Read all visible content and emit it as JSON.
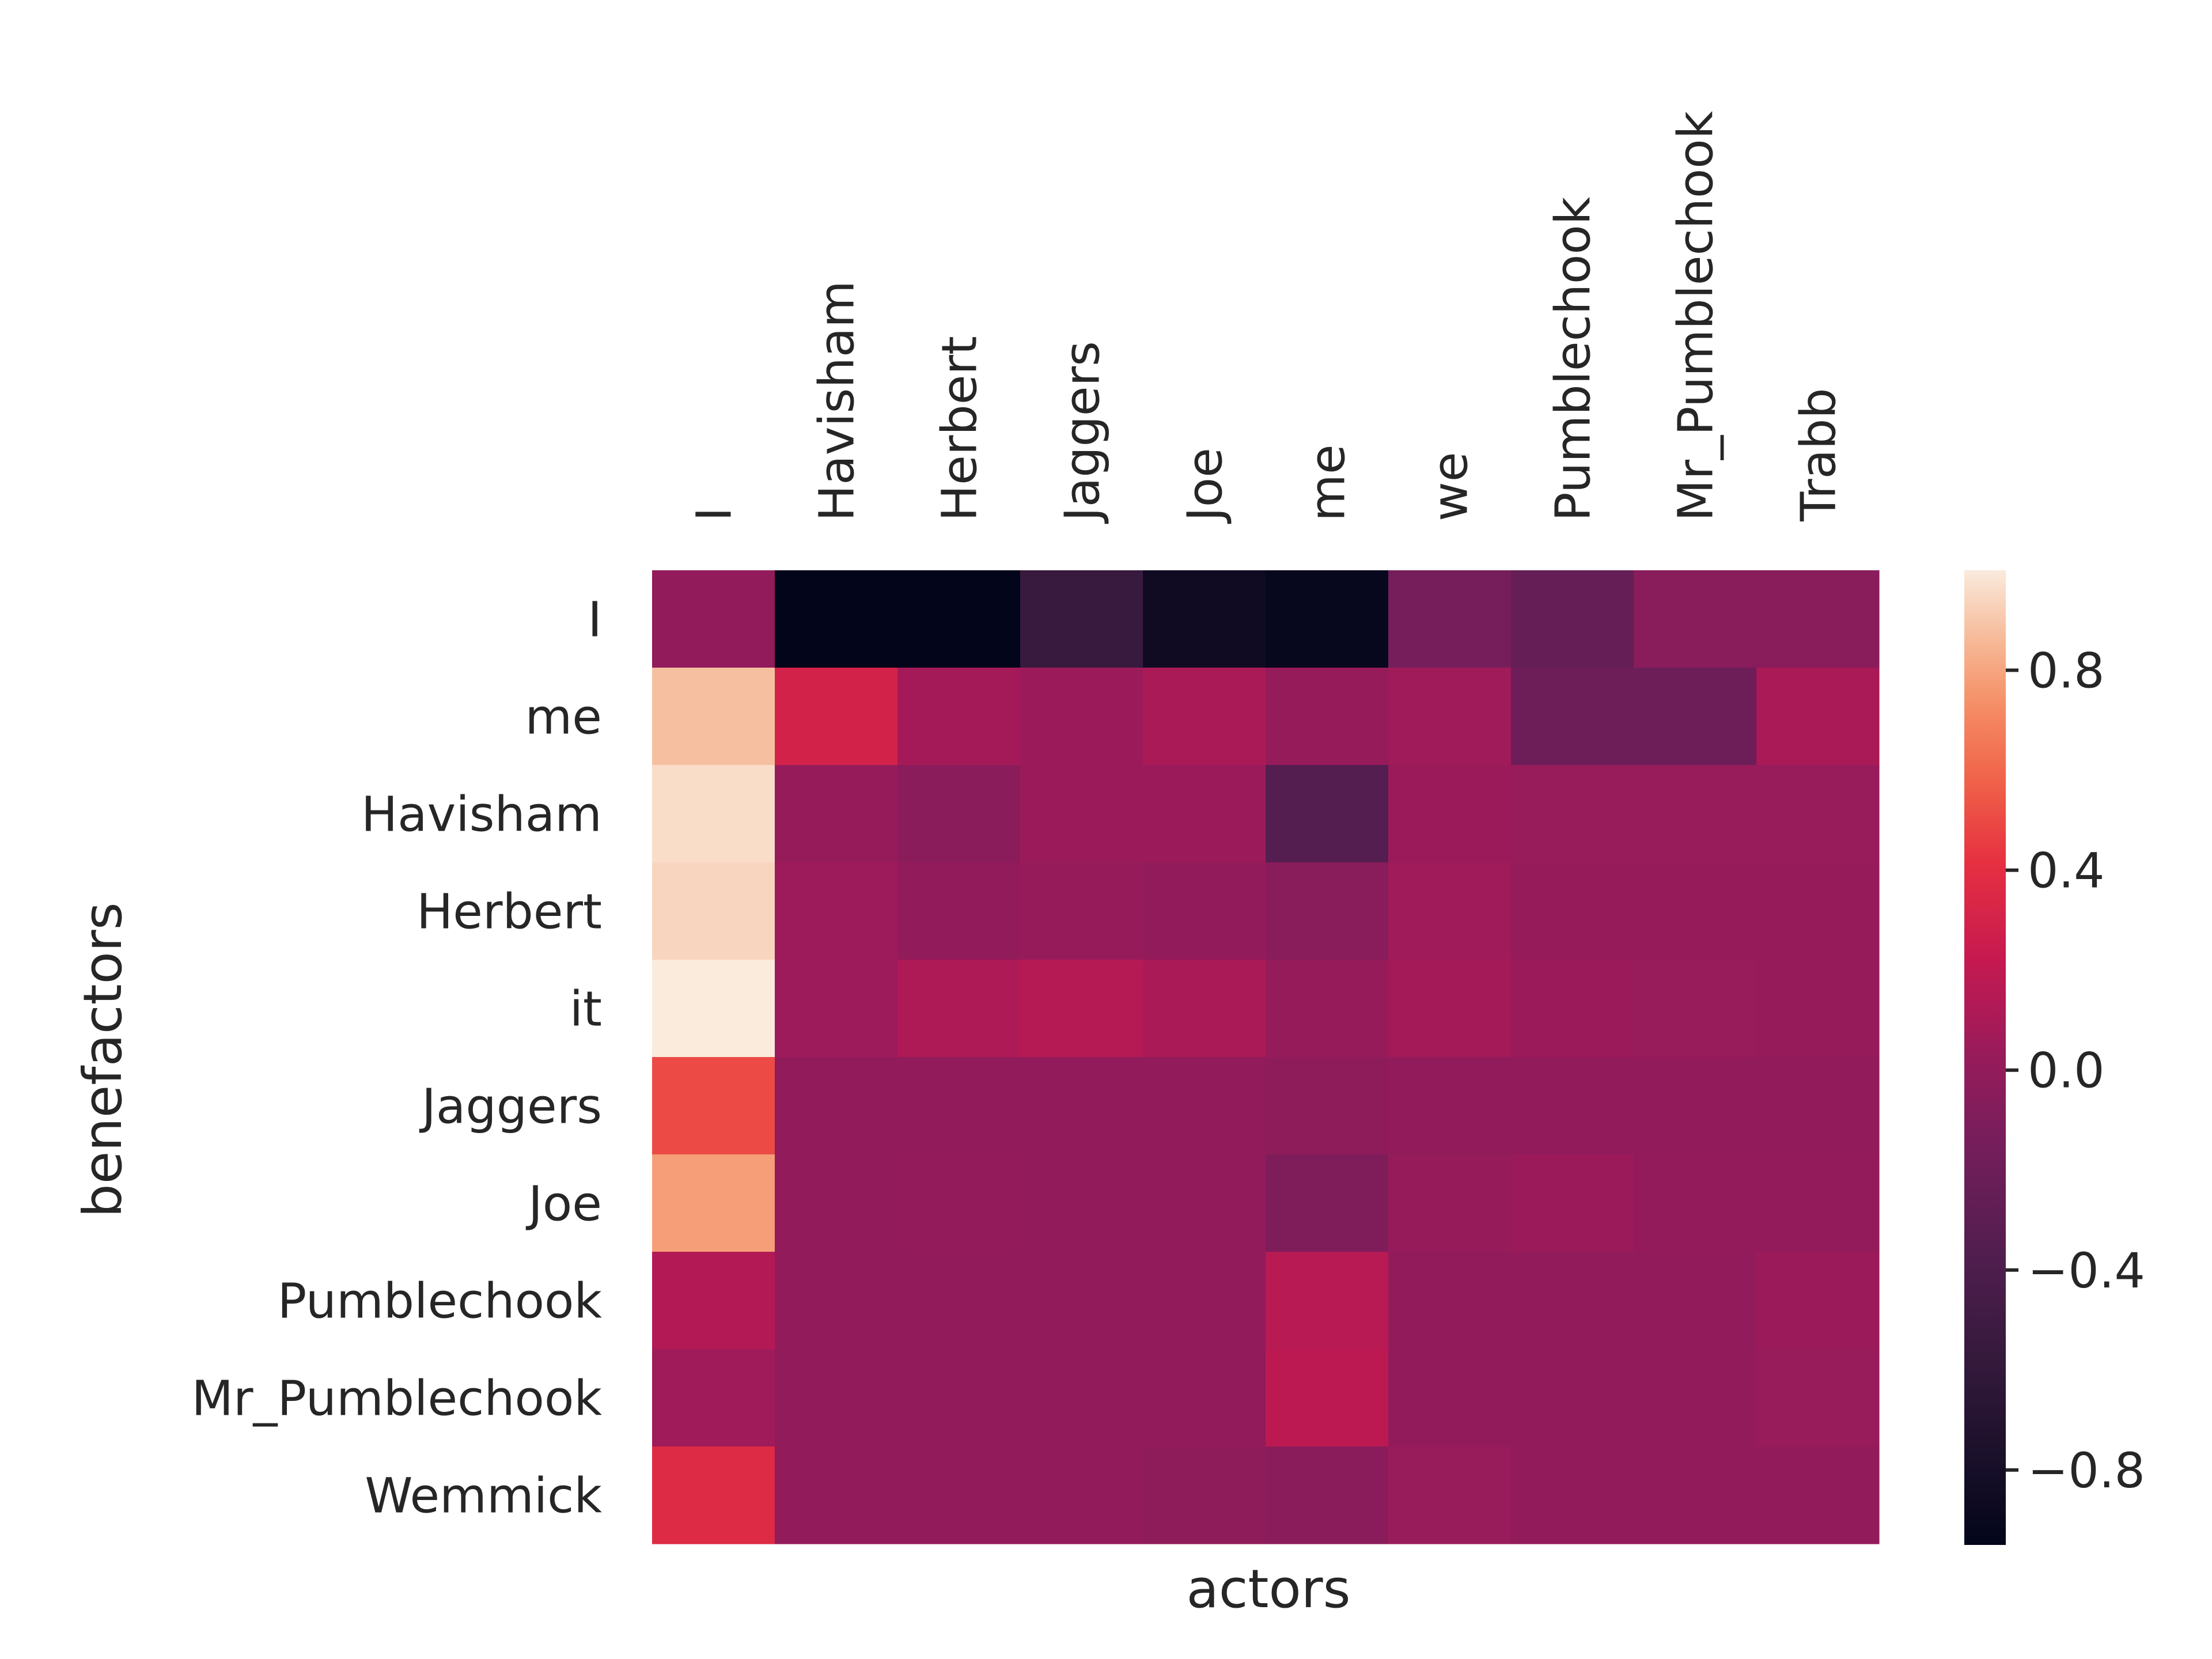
{
  "chart_data": {
    "type": "heatmap",
    "title": "",
    "xlabel": "actors",
    "ylabel": "benefactors",
    "x_tick_position": "top",
    "x_categories": [
      "I",
      "Havisham",
      "Herbert",
      "Jaggers",
      "Joe",
      "me",
      "we",
      "Pumblechook",
      "Mr_Pumblechook",
      "Trabb"
    ],
    "y_categories": [
      "I",
      "me",
      "Havisham",
      "Herbert",
      "it",
      "Jaggers",
      "Joe",
      "Pumblechook",
      "Mr_Pumblechook",
      "Wemmick"
    ],
    "values": [
      [
        0.0,
        -0.98,
        -1.0,
        -0.55,
        -0.85,
        -0.92,
        -0.15,
        -0.25,
        -0.05,
        -0.05
      ],
      [
        0.88,
        0.3,
        0.08,
        0.04,
        0.1,
        0.02,
        0.06,
        -0.2,
        -0.2,
        0.1
      ],
      [
        0.96,
        0.02,
        -0.04,
        0.04,
        0.04,
        -0.35,
        0.04,
        0.03,
        0.03,
        0.03
      ],
      [
        0.94,
        0.05,
        0.0,
        0.02,
        0.0,
        -0.05,
        0.06,
        0.02,
        0.02,
        0.02
      ],
      [
        1.0,
        0.05,
        0.12,
        0.15,
        0.1,
        0.02,
        0.08,
        0.04,
        0.03,
        0.02
      ],
      [
        0.5,
        0.0,
        0.0,
        0.0,
        0.0,
        -0.02,
        0.0,
        0.0,
        0.0,
        0.0
      ],
      [
        0.78,
        0.0,
        0.01,
        0.0,
        0.0,
        -0.1,
        0.02,
        0.04,
        0.01,
        0.01
      ],
      [
        0.14,
        0.0,
        0.0,
        0.0,
        0.0,
        0.16,
        0.0,
        0.0,
        0.0,
        0.04
      ],
      [
        0.06,
        0.0,
        0.0,
        0.0,
        0.0,
        0.18,
        0.0,
        0.0,
        0.0,
        0.03
      ],
      [
        0.36,
        0.0,
        0.0,
        0.0,
        -0.02,
        -0.04,
        0.03,
        0.0,
        0.0,
        0.0
      ]
    ],
    "colorbar": {
      "range": [
        -0.95,
        1.0
      ],
      "ticks": [
        0.8,
        0.4,
        0.0,
        -0.4,
        -0.8
      ],
      "tick_labels": [
        "0.8",
        "0.4",
        "0.0",
        "−0.4",
        "−0.8"
      ],
      "colormap": "rocket"
    },
    "grid": false,
    "legend": "colorbar-right"
  }
}
